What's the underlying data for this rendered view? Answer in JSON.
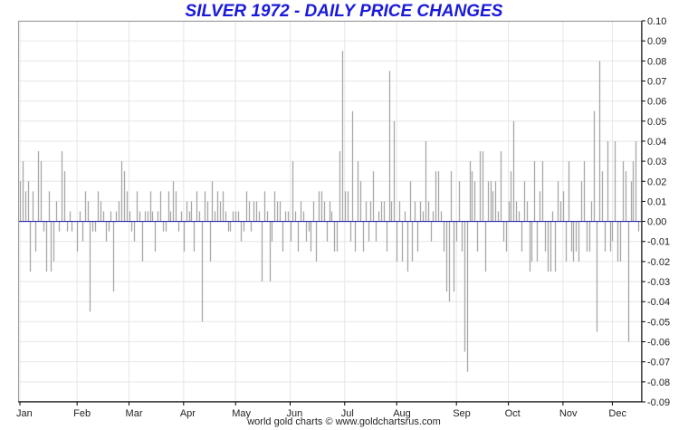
{
  "chart_data": {
    "type": "bar",
    "title": "SILVER 1972 - DAILY PRICE CHANGES",
    "footer": "world gold charts © www.goldchartsrus.com",
    "xlabel": "",
    "ylabel": "",
    "ylim": [
      -0.09,
      0.1
    ],
    "y_ticks": [
      "0.10",
      "0.09",
      "0.08",
      "0.07",
      "0.06",
      "0.05",
      "0.04",
      "0.03",
      "0.02",
      "0.01",
      "0.00",
      "-0.01",
      "-0.02",
      "-0.03",
      "-0.04",
      "-0.05",
      "-0.06",
      "-0.07",
      "-0.08",
      "-0.09"
    ],
    "x_ticks": [
      "Jan",
      "Feb",
      "Mar",
      "Apr",
      "May",
      "Jun",
      "Jul",
      "Aug",
      "Sep",
      "Oct",
      "Nov",
      "Dec"
    ],
    "x_ticks_pos": [
      0,
      22,
      42,
      63,
      83,
      104,
      125,
      145,
      168,
      188,
      209,
      228
    ],
    "grid": true,
    "colors": {
      "bars": "#a8a8a8",
      "zero_line": "#2a2ab0",
      "grid": "#e6e6e6",
      "title": "#1a1adc"
    },
    "values": [
      0.02,
      0.03,
      0.015,
      0.02,
      -0.025,
      0.015,
      -0.015,
      0.035,
      0.03,
      -0.005,
      -0.025,
      0.015,
      -0.025,
      -0.02,
      0.01,
      -0.005,
      0.035,
      0.025,
      -0.005,
      0.005,
      -0.005,
      0.0,
      -0.015,
      0.005,
      -0.01,
      0.015,
      0.01,
      -0.045,
      -0.005,
      -0.005,
      0.015,
      0.01,
      0.005,
      -0.01,
      -0.005,
      0.005,
      -0.035,
      0.005,
      0.01,
      0.03,
      0.025,
      0.015,
      0.005,
      -0.005,
      -0.01,
      0.015,
      0.005,
      -0.02,
      0.005,
      0.005,
      0.015,
      0.005,
      -0.015,
      0.005,
      0.015,
      -0.005,
      -0.005,
      0.015,
      0.005,
      0.02,
      0.015,
      -0.005,
      0.005,
      -0.015,
      0.01,
      0.005,
      0.01,
      -0.015,
      0.015,
      0.005,
      -0.05,
      0.015,
      0.01,
      -0.02,
      0.02,
      0.005,
      0.015,
      0.01,
      0.015,
      0.005,
      -0.005,
      -0.005,
      0.005,
      0.005,
      0.005,
      -0.01,
      -0.005,
      0.015,
      0.01,
      -0.005,
      0.01,
      0.01,
      0.005,
      -0.03,
      0.015,
      0.005,
      -0.03,
      -0.01,
      0.015,
      0.01,
      0.01,
      -0.015,
      0.005,
      0.005,
      -0.01,
      0.03,
      0.005,
      -0.015,
      0.01,
      0.005,
      -0.01,
      -0.005,
      -0.015,
      0.01,
      -0.02,
      0.015,
      0.015,
      0.01,
      -0.01,
      0.01,
      0.005,
      -0.015,
      -0.015,
      0.035,
      0.085,
      0.015,
      0.015,
      -0.01,
      0.055,
      -0.015,
      0.03,
      0.02,
      -0.015,
      0.01,
      -0.01,
      0.01,
      0.025,
      -0.01,
      0.005,
      0.01,
      0.01,
      -0.015,
      0.075,
      0.01,
      0.05,
      -0.02,
      0.01,
      -0.02,
      0.005,
      -0.025,
      0.02,
      -0.02,
      0.01,
      -0.015,
      0.01,
      0.005,
      0.04,
      0.01,
      -0.01,
      0.005,
      0.025,
      0.025,
      0.005,
      -0.015,
      -0.035,
      -0.04,
      0.025,
      -0.035,
      -0.01,
      0.02,
      -0.015,
      -0.065,
      -0.075,
      0.03,
      0.025,
      0.02,
      -0.015,
      0.035,
      0.035,
      -0.025,
      0.02,
      0.02,
      0.015,
      0.02,
      0.005,
      0.035,
      -0.01,
      -0.015,
      0.01,
      0.025,
      0.05,
      0.01,
      0.005,
      -0.015,
      0.02,
      0.01,
      -0.025,
      -0.02,
      0.03,
      -0.02,
      0.015,
      0.03,
      -0.015,
      -0.025,
      -0.025,
      0.005,
      -0.025,
      0.02,
      0.01,
      0.015,
      -0.02,
      0.03,
      -0.015,
      -0.02,
      -0.015,
      -0.02,
      0.02,
      0.03,
      -0.015,
      -0.015,
      0.01,
      0.055,
      -0.055,
      0.08,
      0.025,
      -0.015,
      0.04,
      -0.015,
      -0.01,
      0.04,
      -0.02,
      -0.02,
      0.03,
      0.025,
      -0.06,
      0.02,
      0.03,
      0.04,
      -0.005,
      0.01
    ]
  }
}
